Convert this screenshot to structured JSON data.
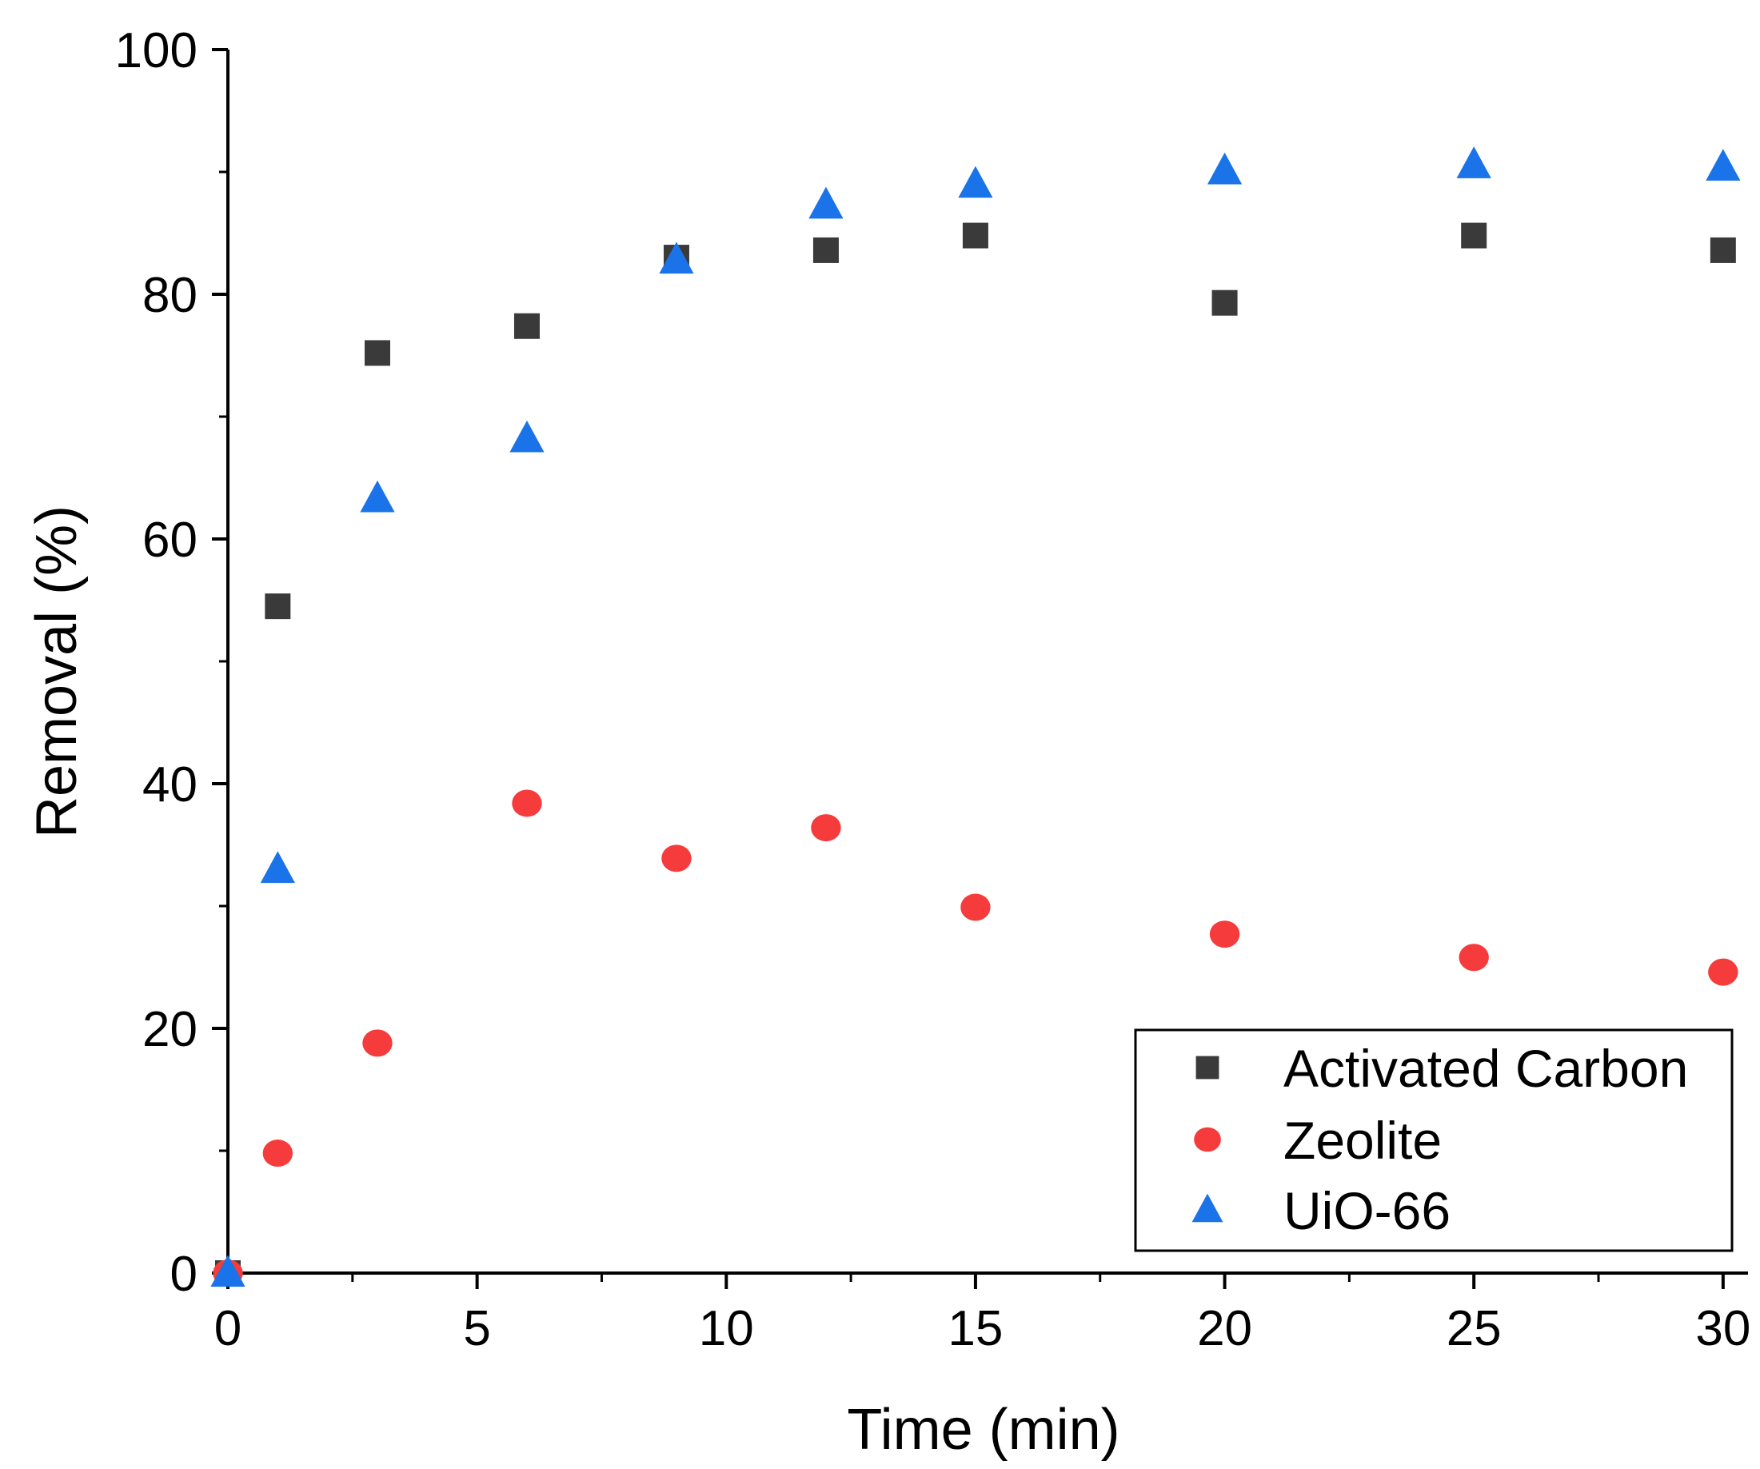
{
  "chart_data": {
    "type": "scatter",
    "title": "",
    "xlabel": "Time (min)",
    "ylabel": "Removal (%)",
    "xlim": [
      0,
      30.5
    ],
    "ylim": [
      0,
      100
    ],
    "xticks": [
      0,
      5,
      10,
      15,
      20,
      25,
      30
    ],
    "yticks": [
      0,
      20,
      40,
      60,
      80,
      100
    ],
    "xtick_labels": [
      "0",
      "5",
      "10",
      "15",
      "20",
      "25",
      "30"
    ],
    "ytick_labels": [
      "0",
      "20",
      "40",
      "60",
      "80",
      "100"
    ],
    "grid": false,
    "legend_position": "bottom-right",
    "series": [
      {
        "name": "Activated Carbon",
        "marker": "square",
        "color": "#3a3a3a",
        "x": [
          0,
          1,
          3,
          6,
          9,
          12,
          15,
          20,
          25,
          30
        ],
        "y": [
          0,
          54.5,
          75.2,
          77.4,
          83,
          83.6,
          84.8,
          79.3,
          84.8,
          83.6
        ]
      },
      {
        "name": "Zeolite",
        "marker": "circle",
        "color": "#f53b3b",
        "x": [
          0,
          1,
          3,
          6,
          9,
          12,
          15,
          20,
          25,
          30
        ],
        "y": [
          0,
          9.8,
          18.8,
          38.4,
          33.9,
          36.4,
          29.9,
          27.7,
          25.8,
          24.6
        ]
      },
      {
        "name": "UiO-66",
        "marker": "triangle",
        "color": "#1a73e8",
        "x": [
          0,
          1,
          3,
          6,
          9,
          12,
          15,
          20,
          25,
          30
        ],
        "y": [
          0,
          33,
          63.3,
          68.2,
          82.8,
          87.3,
          89.0,
          90.1,
          90.6,
          90.4
        ]
      }
    ]
  }
}
